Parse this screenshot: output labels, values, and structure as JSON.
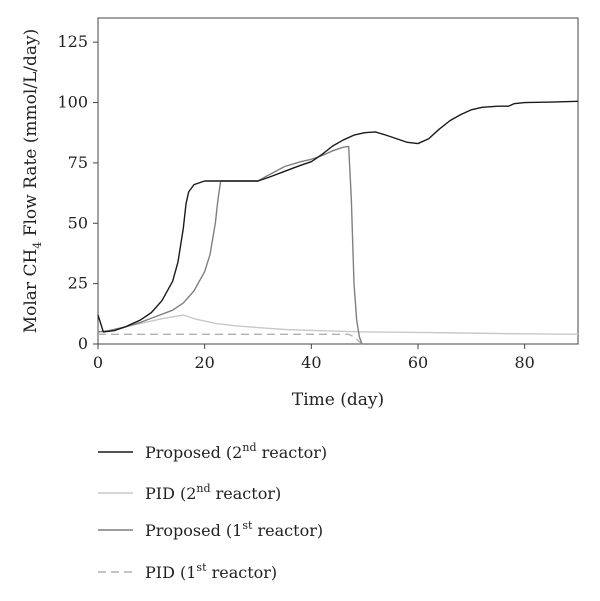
{
  "chart_data": {
    "type": "line",
    "title": "",
    "xlabel": "Time (day)",
    "ylabel": {
      "main": "Molar CH",
      "subscript": "4",
      "rest": " Flow Rate (mmol/L/day)"
    },
    "xlim": [
      0,
      90
    ],
    "ylim": [
      0,
      135
    ],
    "xticks": [
      0,
      20,
      40,
      60,
      80
    ],
    "yticks": [
      0,
      25,
      50,
      75,
      100,
      125
    ],
    "grid": false,
    "legend_position": "below",
    "series": [
      {
        "name": "Proposed (2nd reactor)",
        "legend": {
          "main": "Proposed (2",
          "sup": "nd",
          "rest": " reactor)"
        },
        "color": "#1a1a1a",
        "dash": "solid",
        "points": [
          [
            0,
            12
          ],
          [
            1,
            5
          ],
          [
            3,
            5.5
          ],
          [
            5,
            7
          ],
          [
            8,
            10
          ],
          [
            10,
            13
          ],
          [
            12,
            18
          ],
          [
            14,
            26
          ],
          [
            15,
            34
          ],
          [
            16,
            48
          ],
          [
            16.5,
            58
          ],
          [
            17,
            63
          ],
          [
            18,
            66
          ],
          [
            20,
            67.5
          ],
          [
            22,
            67.5
          ],
          [
            26,
            67.5
          ],
          [
            30,
            67.5
          ],
          [
            32,
            69
          ],
          [
            35,
            71.5
          ],
          [
            38,
            74
          ],
          [
            40,
            75.5
          ],
          [
            42,
            78.5
          ],
          [
            44,
            82
          ],
          [
            46,
            84.5
          ],
          [
            48,
            86.5
          ],
          [
            50,
            87.5
          ],
          [
            52,
            87.8
          ],
          [
            54,
            86.5
          ],
          [
            56,
            85
          ],
          [
            58,
            83.5
          ],
          [
            60,
            83
          ],
          [
            62,
            85
          ],
          [
            64,
            89
          ],
          [
            66,
            92.5
          ],
          [
            68,
            95
          ],
          [
            70,
            97
          ],
          [
            72,
            98
          ],
          [
            75,
            98.5
          ],
          [
            77,
            98.5
          ],
          [
            78,
            99.5
          ],
          [
            80,
            100
          ],
          [
            85,
            100.2
          ],
          [
            90,
            100.5
          ]
        ]
      },
      {
        "name": "PID (2nd reactor)",
        "legend": {
          "main": "PID (2",
          "sup": "nd",
          "rest": " reactor)"
        },
        "color": "#c8c8c8",
        "dash": "solid",
        "points": [
          [
            0,
            5
          ],
          [
            2,
            5.5
          ],
          [
            5,
            7
          ],
          [
            8,
            8.5
          ],
          [
            12,
            10.5
          ],
          [
            16,
            12
          ],
          [
            18,
            10.5
          ],
          [
            22,
            8.5
          ],
          [
            26,
            7.5
          ],
          [
            30,
            6.8
          ],
          [
            35,
            6
          ],
          [
            40,
            5.6
          ],
          [
            45,
            5.3
          ],
          [
            50,
            5
          ],
          [
            60,
            4.8
          ],
          [
            70,
            4.5
          ],
          [
            80,
            4.2
          ],
          [
            90,
            4
          ]
        ]
      },
      {
        "name": "Proposed (1st reactor)",
        "legend": {
          "main": "Proposed (1",
          "sup": "st",
          "rest": " reactor)"
        },
        "color": "#7f7f7f",
        "dash": "solid",
        "points": [
          [
            0,
            5
          ],
          [
            2,
            5.5
          ],
          [
            5,
            7
          ],
          [
            8,
            9
          ],
          [
            11,
            11.5
          ],
          [
            14,
            14
          ],
          [
            16,
            17
          ],
          [
            18,
            22
          ],
          [
            20,
            30
          ],
          [
            21,
            37
          ],
          [
            22,
            50
          ],
          [
            22.5,
            60
          ],
          [
            23,
            67.5
          ],
          [
            25,
            67.5
          ],
          [
            30,
            67.5
          ],
          [
            32,
            70
          ],
          [
            35,
            73.5
          ],
          [
            38,
            75.5
          ],
          [
            40,
            76.5
          ],
          [
            42,
            78
          ],
          [
            44,
            80
          ],
          [
            46,
            81.5
          ],
          [
            47,
            81.8
          ],
          [
            47.5,
            60
          ],
          [
            48,
            25
          ],
          [
            48.5,
            10
          ],
          [
            49,
            3
          ],
          [
            49.5,
            0
          ]
        ]
      },
      {
        "name": "PID (1st reactor)",
        "legend": {
          "main": "PID (1",
          "sup": "st",
          "rest": " reactor)"
        },
        "color": "#b0b0b0",
        "dash": "dashed",
        "points": [
          [
            0,
            4
          ],
          [
            5,
            4
          ],
          [
            10,
            4
          ],
          [
            20,
            4
          ],
          [
            30,
            4
          ],
          [
            40,
            4
          ],
          [
            45,
            4
          ],
          [
            47,
            4
          ],
          [
            48,
            3
          ],
          [
            49,
            1
          ],
          [
            49.5,
            0
          ]
        ]
      }
    ]
  }
}
